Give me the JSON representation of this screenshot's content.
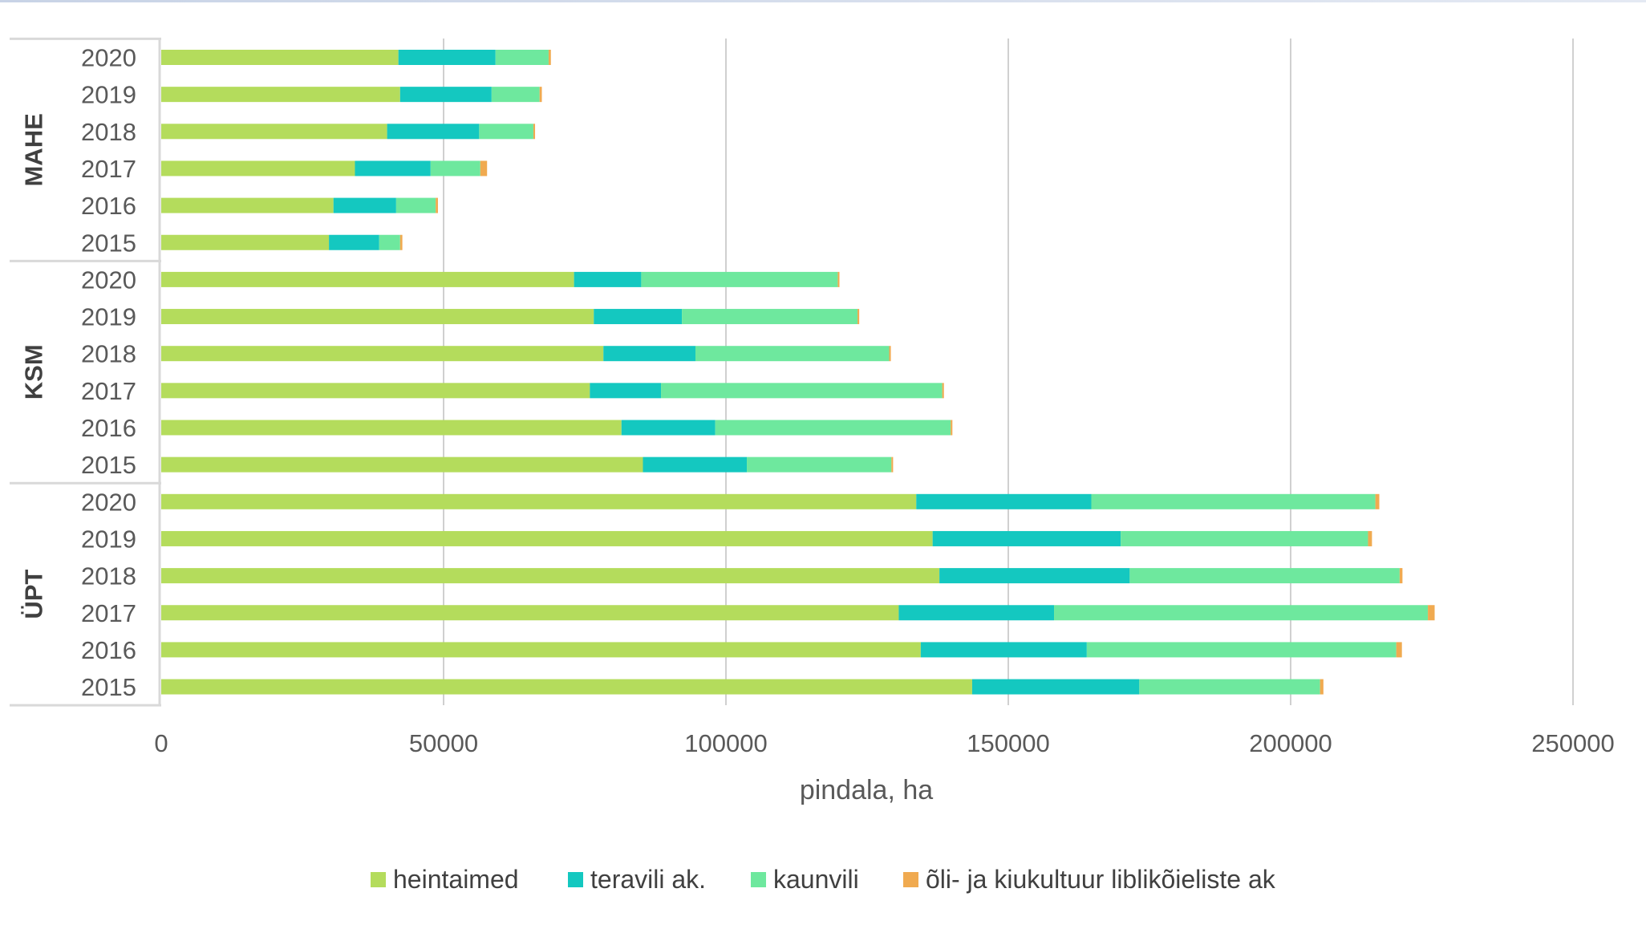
{
  "chart_data": {
    "type": "bar",
    "orientation": "horizontal",
    "stacked": true,
    "xlabel": "pindala, ha",
    "xlim": [
      0,
      250000
    ],
    "x_ticks": [
      "0",
      "50000",
      "100000",
      "150000",
      "200000",
      "250000"
    ],
    "grid": "vertical",
    "legend_position": "bottom",
    "groups": [
      {
        "name": "MAHE",
        "categories": [
          "2020",
          "2019",
          "2018",
          "2017",
          "2016",
          "2015"
        ],
        "series": [
          {
            "name": "heintaimed",
            "values": [
              42000,
              42300,
              40000,
              34300,
              30500,
              29700
            ]
          },
          {
            "name": "teravili ak.",
            "values": [
              17200,
              16200,
              16300,
              13400,
              11100,
              8900
            ]
          },
          {
            "name": "kaunvili",
            "values": [
              9400,
              8500,
              9600,
              8800,
              7000,
              3700
            ]
          },
          {
            "name": "õli- ja kiukultuur liblikõieliste ak",
            "values": [
              400,
              400,
              300,
              1200,
              400,
              400
            ]
          }
        ]
      },
      {
        "name": "KSM",
        "categories": [
          "2020",
          "2019",
          "2018",
          "2017",
          "2016",
          "2015"
        ],
        "series": [
          {
            "name": "heintaimed",
            "values": [
              73100,
              76600,
              78300,
              75900,
              81500,
              85300
            ]
          },
          {
            "name": "teravili ak.",
            "values": [
              11900,
              15600,
              16300,
              12600,
              16600,
              18400
            ]
          },
          {
            "name": "kaunvili",
            "values": [
              34800,
              31100,
              34300,
              49800,
              41700,
              25600
            ]
          },
          {
            "name": "õli- ja kiukultuur liblikõieliste ak",
            "values": [
              300,
              300,
              300,
              300,
              300,
              300
            ]
          }
        ]
      },
      {
        "name": "ÜPT",
        "categories": [
          "2020",
          "2019",
          "2018",
          "2017",
          "2016",
          "2015"
        ],
        "series": [
          {
            "name": "heintaimed",
            "values": [
              133700,
              136600,
              137800,
              130600,
              134500,
              143600
            ]
          },
          {
            "name": "teravili ak.",
            "values": [
              31000,
              33300,
              33700,
              27500,
              29400,
              29600
            ]
          },
          {
            "name": "kaunvili",
            "values": [
              50300,
              43800,
              47800,
              66200,
              54800,
              32000
            ]
          },
          {
            "name": "õli- ja kiukultuur liblikõieliste ak",
            "values": [
              700,
              700,
              500,
              1200,
              1000,
              600
            ]
          }
        ]
      }
    ],
    "colors": [
      "#b4dc5c",
      "#14c8c0",
      "#6ee89e",
      "#f0aa50"
    ]
  },
  "legend": {
    "items": [
      {
        "label": "heintaimed",
        "color": "#b4dc5c"
      },
      {
        "label": "teravili ak.",
        "color": "#14c8c0"
      },
      {
        "label": "kaunvili",
        "color": "#6ee89e"
      },
      {
        "label": "õli- ja kiukultuur liblikõieliste ak",
        "color": "#f0aa50"
      }
    ]
  }
}
